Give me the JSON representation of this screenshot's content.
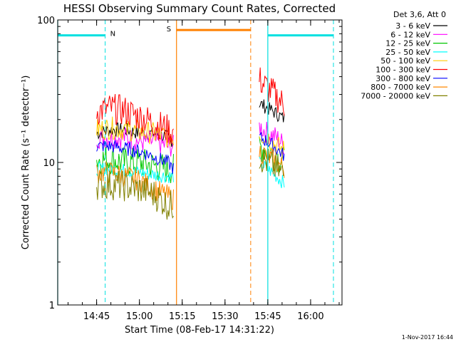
{
  "chart_data": {
    "type": "line",
    "title": "HESSI Observing Summary Count Rates, Corrected",
    "xlabel": "Start Time (08-Feb-17 14:31:22)",
    "ylabel": "Corrected Count Rate (s⁻¹ detector⁻¹)",
    "yscale": "log",
    "ylim": [
      1,
      100
    ],
    "xlim": [
      "14:31:22",
      "16:11:00"
    ],
    "x_ticks": [
      "14:45",
      "15:00",
      "15:15",
      "15:30",
      "15:45",
      "16:00"
    ],
    "y_ticks": [
      "1",
      "10",
      "100"
    ],
    "legend_title": "Det 3,6, Att 0",
    "legend_position": "right",
    "footer": "1-Nov-2017 16:44",
    "series": [
      {
        "name": "3 - 6 keV",
        "color": "#000000",
        "segments": [
          {
            "x": [
              "14:45",
              "14:50",
              "14:55",
              "15:00",
              "15:05",
              "15:10",
              "15:12"
            ],
            "y": [
              16,
              17,
              17,
              16,
              16,
              15,
              14
            ]
          },
          {
            "x": [
              "15:42",
              "15:45",
              "15:48",
              "15:51"
            ],
            "y": [
              26,
              24,
              22,
              20
            ]
          }
        ]
      },
      {
        "name": "6 - 12 keV",
        "color": "#ff00ff",
        "segments": [
          {
            "x": [
              "14:45",
              "14:50",
              "14:55",
              "15:00",
              "15:05",
              "15:10",
              "15:12"
            ],
            "y": [
              15,
              15,
              15,
              14,
              14,
              13,
              13
            ]
          },
          {
            "x": [
              "15:42",
              "15:45",
              "15:48",
              "15:51"
            ],
            "y": [
              18,
              16,
              15,
              13
            ]
          }
        ]
      },
      {
        "name": "12 - 25 keV",
        "color": "#00c800",
        "segments": [
          {
            "x": [
              "14:45",
              "14:50",
              "14:55",
              "15:00",
              "15:05",
              "15:10",
              "15:12"
            ],
            "y": [
              10.5,
              10.5,
              10,
              10,
              9.5,
              9,
              9
            ]
          },
          {
            "x": [
              "15:42",
              "15:45",
              "15:48",
              "15:51"
            ],
            "y": [
              13,
              12,
              11,
              10
            ]
          }
        ]
      },
      {
        "name": "25 - 50 keV",
        "color": "#00ffff",
        "segments": [
          {
            "x": [
              "14:45",
              "14:50",
              "14:55",
              "15:00",
              "15:05",
              "15:10",
              "15:12"
            ],
            "y": [
              9,
              9,
              8.8,
              8.5,
              8.2,
              8,
              8
            ]
          },
          {
            "x": [
              "15:42",
              "15:45",
              "15:48",
              "15:51"
            ],
            "y": [
              10,
              9,
              8,
              7
            ]
          }
        ]
      },
      {
        "name": "50 - 100 keV",
        "color": "#ffcc00",
        "segments": [
          {
            "x": [
              "14:45",
              "14:50",
              "14:55",
              "15:00",
              "15:05",
              "15:10",
              "15:12"
            ],
            "y": [
              17,
              17.5,
              17,
              16.5,
              16,
              15,
              15
            ]
          },
          {
            "x": [
              "15:42",
              "15:45",
              "15:48",
              "15:51"
            ],
            "y": [
              16,
              15,
              13,
              12
            ]
          }
        ]
      },
      {
        "name": "100 - 300 keV",
        "color": "#ff0000",
        "segments": [
          {
            "x": [
              "14:45",
              "14:50",
              "14:55",
              "15:00",
              "15:05",
              "15:10",
              "15:12"
            ],
            "y": [
              23,
              24,
              23,
              21,
              19,
              17,
              16
            ]
          },
          {
            "x": [
              "15:42",
              "15:45",
              "15:48",
              "15:51"
            ],
            "y": [
              38,
              33,
              29,
              25
            ]
          }
        ]
      },
      {
        "name": "300 - 800 keV",
        "color": "#0000ff",
        "segments": [
          {
            "x": [
              "14:45",
              "14:50",
              "14:55",
              "15:00",
              "15:05",
              "15:10",
              "15:12"
            ],
            "y": [
              13,
              13,
              12.5,
              12,
              11,
              10,
              9
            ]
          },
          {
            "x": [
              "15:42",
              "15:45",
              "15:48",
              "15:51"
            ],
            "y": [
              15,
              14,
              12.5,
              11
            ]
          }
        ]
      },
      {
        "name": "800 - 7000 keV",
        "color": "#ff8800",
        "segments": [
          {
            "x": [
              "14:45",
              "14:50",
              "14:55",
              "15:00",
              "15:05",
              "15:10",
              "15:12"
            ],
            "y": [
              8.5,
              8.5,
              8,
              7.5,
              6.5,
              5.8,
              5.5
            ]
          },
          {
            "x": [
              "15:42",
              "15:45",
              "15:48",
              "15:51"
            ],
            "y": [
              12,
              11,
              10,
              9
            ]
          }
        ]
      },
      {
        "name": "7000 - 20000 keV",
        "color": "#808000",
        "segments": [
          {
            "x": [
              "14:45",
              "14:50",
              "14:55",
              "15:00",
              "15:05",
              "15:10",
              "15:12"
            ],
            "y": [
              7,
              7,
              6.8,
              6.5,
              6,
              5,
              5
            ]
          },
          {
            "x": [
              "15:42",
              "15:45",
              "15:48",
              "15:51"
            ],
            "y": [
              11,
              10,
              9,
              8
            ]
          }
        ]
      }
    ],
    "annotations": {
      "night_bars": [
        {
          "label": "N",
          "color": "#00e0e0",
          "y": 78,
          "intervals": [
            [
              "14:31:22",
              "14:48"
            ],
            [
              "15:45",
              "16:08"
            ]
          ]
        }
      ],
      "saa_bars": [
        {
          "label": "S",
          "color": "#ff8000",
          "y": 85,
          "intervals": [
            [
              "15:13",
              "15:39"
            ]
          ]
        }
      ],
      "solid_lines": [
        {
          "x": "14:31:22",
          "color": "#00e0e0"
        },
        {
          "x": "15:45",
          "color": "#00e0e0"
        },
        {
          "x": "15:13",
          "color": "#ff8000"
        }
      ],
      "dashed_lines": [
        {
          "x": "14:48",
          "color": "#00e0e0"
        },
        {
          "x": "16:08",
          "color": "#00e0e0"
        },
        {
          "x": "15:39",
          "color": "#ff8000"
        }
      ]
    }
  }
}
